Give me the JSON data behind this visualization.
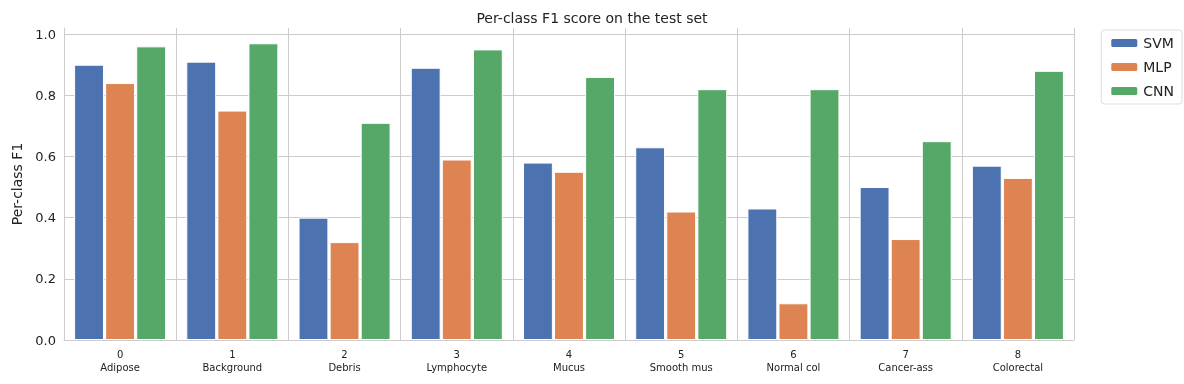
{
  "chart_data": {
    "type": "bar",
    "title": "Per-class F1 score on the test set",
    "ylabel": "Per-class F1",
    "categories": [
      "0\nAdipose",
      "1\nBackground",
      "2\nDebris",
      "3\nLymphocyte",
      "4\nMucus",
      "5\nSmooth mus",
      "6\nNormal col",
      "7\nCancer-ass",
      "8\nColorectal"
    ],
    "series": [
      {
        "name": "SVM",
        "color": "#4c72b0",
        "values": [
          0.9,
          0.91,
          0.4,
          0.89,
          0.58,
          0.63,
          0.43,
          0.5,
          0.57
        ]
      },
      {
        "name": "MLP",
        "color": "#dd8452",
        "values": [
          0.84,
          0.75,
          0.32,
          0.59,
          0.55,
          0.42,
          0.12,
          0.33,
          0.53
        ]
      },
      {
        "name": "CNN",
        "color": "#55a868",
        "values": [
          0.96,
          0.97,
          0.71,
          0.95,
          0.86,
          0.82,
          0.82,
          0.65,
          0.88
        ]
      }
    ],
    "ylim": [
      0,
      1.02
    ],
    "yticks": [
      {
        "value": 0,
        "label": "0.0"
      },
      {
        "value": 0.2,
        "label": "0.2"
      },
      {
        "value": 0.4,
        "label": "0.4"
      },
      {
        "value": 0.6,
        "label": "0.6"
      },
      {
        "value": 0.8,
        "label": "0.8"
      },
      {
        "value": 1,
        "label": "1.0"
      }
    ],
    "grid": true,
    "legend": "top right"
  }
}
